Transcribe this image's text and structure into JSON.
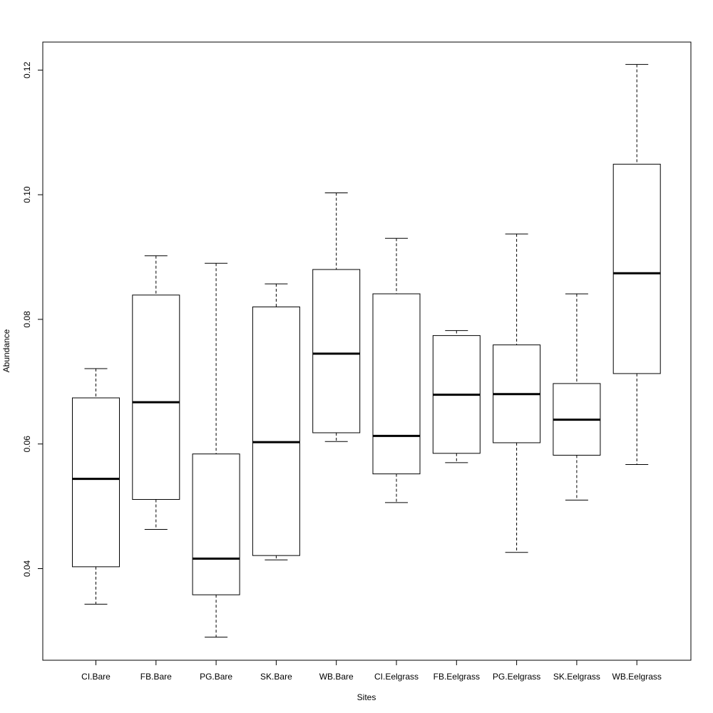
{
  "chart_data": {
    "type": "boxplot",
    "title": "",
    "xlabel": "Sites",
    "ylabel": "Abundance",
    "ylim": [
      0.025,
      0.125
    ],
    "yticks": [
      0.04,
      0.06,
      0.08,
      0.1,
      0.12
    ],
    "ytick_labels": [
      "0.04",
      "0.06",
      "0.08",
      "0.10",
      "0.12"
    ],
    "grid": false,
    "categories": [
      "CI.Bare",
      "FB.Bare",
      "PG.Bare",
      "SK.Bare",
      "WB.Bare",
      "CI.Eelgrass",
      "FB.Eelgrass",
      "PG.Eelgrass",
      "SK.Eelgrass",
      "WB.Eelgrass"
    ],
    "boxes": [
      {
        "min": 0.0343,
        "q1": 0.0403,
        "median": 0.0544,
        "q3": 0.0674,
        "max": 0.0721
      },
      {
        "min": 0.0463,
        "q1": 0.0511,
        "median": 0.0667,
        "q3": 0.0839,
        "max": 0.0902
      },
      {
        "min": 0.029,
        "q1": 0.0358,
        "median": 0.0416,
        "q3": 0.0584,
        "max": 0.089
      },
      {
        "min": 0.0414,
        "q1": 0.0421,
        "median": 0.0603,
        "q3": 0.082,
        "max": 0.0857
      },
      {
        "min": 0.0604,
        "q1": 0.0618,
        "median": 0.0745,
        "q3": 0.088,
        "max": 0.1003
      },
      {
        "min": 0.0506,
        "q1": 0.0552,
        "median": 0.0613,
        "q3": 0.0841,
        "max": 0.093
      },
      {
        "min": 0.057,
        "q1": 0.0585,
        "median": 0.0679,
        "q3": 0.0774,
        "max": 0.0782
      },
      {
        "min": 0.0426,
        "q1": 0.0602,
        "median": 0.068,
        "q3": 0.0759,
        "max": 0.0937
      },
      {
        "min": 0.051,
        "q1": 0.0582,
        "median": 0.0639,
        "q3": 0.0697,
        "max": 0.0841
      },
      {
        "min": 0.0567,
        "q1": 0.0713,
        "median": 0.0874,
        "q3": 0.1049,
        "max": 0.1209
      }
    ]
  }
}
